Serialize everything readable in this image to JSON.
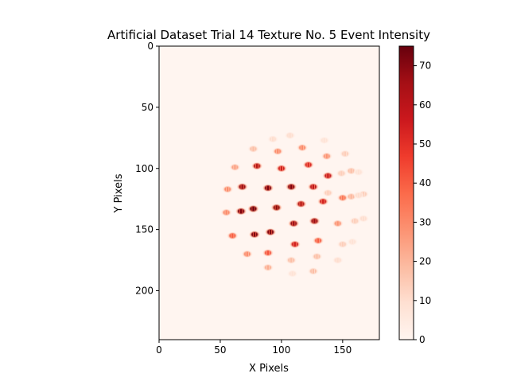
{
  "chart_data": {
    "type": "heatmap",
    "title": "Artificial Dataset Trial 14 Texture No. 5 Event Intensity",
    "xlabel": "X Pixels",
    "ylabel": "Y Pixels",
    "xlim": [
      0,
      180
    ],
    "ylim": [
      240,
      0
    ],
    "xticks": [
      0,
      50,
      100,
      150
    ],
    "yticks": [
      0,
      50,
      100,
      150,
      200
    ],
    "colormap": "Reds",
    "color_range": [
      0,
      75
    ],
    "colorbar_ticks": [
      0,
      10,
      20,
      30,
      40,
      50,
      60,
      70
    ],
    "background_value": 0,
    "spots": [
      {
        "x": 107,
        "y": 73,
        "v": 10
      },
      {
        "x": 93,
        "y": 76,
        "v": 10
      },
      {
        "x": 135,
        "y": 77,
        "v": 8
      },
      {
        "x": 77,
        "y": 84,
        "v": 18
      },
      {
        "x": 117,
        "y": 83,
        "v": 30
      },
      {
        "x": 97,
        "y": 86,
        "v": 30
      },
      {
        "x": 152,
        "y": 88,
        "v": 14
      },
      {
        "x": 137,
        "y": 90,
        "v": 28
      },
      {
        "x": 80,
        "y": 98,
        "v": 62
      },
      {
        "x": 62,
        "y": 99,
        "v": 25
      },
      {
        "x": 100,
        "y": 100,
        "v": 55
      },
      {
        "x": 122,
        "y": 97,
        "v": 52
      },
      {
        "x": 157,
        "y": 102,
        "v": 18
      },
      {
        "x": 149,
        "y": 104,
        "v": 14
      },
      {
        "x": 138,
        "y": 106,
        "v": 58
      },
      {
        "x": 163,
        "y": 103,
        "v": 8
      },
      {
        "x": 68,
        "y": 115,
        "v": 68
      },
      {
        "x": 89,
        "y": 116,
        "v": 72
      },
      {
        "x": 108,
        "y": 115,
        "v": 72
      },
      {
        "x": 126,
        "y": 115,
        "v": 60
      },
      {
        "x": 56,
        "y": 117,
        "v": 30
      },
      {
        "x": 138,
        "y": 120,
        "v": 14
      },
      {
        "x": 157,
        "y": 123,
        "v": 20
      },
      {
        "x": 150,
        "y": 124,
        "v": 35
      },
      {
        "x": 167,
        "y": 121,
        "v": 14
      },
      {
        "x": 163,
        "y": 122,
        "v": 10
      },
      {
        "x": 134,
        "y": 127,
        "v": 55
      },
      {
        "x": 116,
        "y": 129,
        "v": 62
      },
      {
        "x": 96,
        "y": 132,
        "v": 70
      },
      {
        "x": 77,
        "y": 133,
        "v": 75
      },
      {
        "x": 55,
        "y": 136,
        "v": 30
      },
      {
        "x": 67,
        "y": 135,
        "v": 72
      },
      {
        "x": 127,
        "y": 143,
        "v": 68
      },
      {
        "x": 110,
        "y": 145,
        "v": 68
      },
      {
        "x": 146,
        "y": 145,
        "v": 28
      },
      {
        "x": 160,
        "y": 143,
        "v": 14
      },
      {
        "x": 167,
        "y": 141,
        "v": 10
      },
      {
        "x": 78,
        "y": 154,
        "v": 72
      },
      {
        "x": 91,
        "y": 152,
        "v": 72
      },
      {
        "x": 60,
        "y": 155,
        "v": 40
      },
      {
        "x": 130,
        "y": 159,
        "v": 40
      },
      {
        "x": 111,
        "y": 162,
        "v": 55
      },
      {
        "x": 150,
        "y": 162,
        "v": 14
      },
      {
        "x": 158,
        "y": 160,
        "v": 8
      },
      {
        "x": 89,
        "y": 169,
        "v": 42
      },
      {
        "x": 72,
        "y": 170,
        "v": 30
      },
      {
        "x": 129,
        "y": 172,
        "v": 18
      },
      {
        "x": 108,
        "y": 175,
        "v": 18
      },
      {
        "x": 146,
        "y": 175,
        "v": 10
      },
      {
        "x": 89,
        "y": 181,
        "v": 22
      },
      {
        "x": 126,
        "y": 184,
        "v": 18
      },
      {
        "x": 109,
        "y": 186,
        "v": 8
      }
    ]
  }
}
